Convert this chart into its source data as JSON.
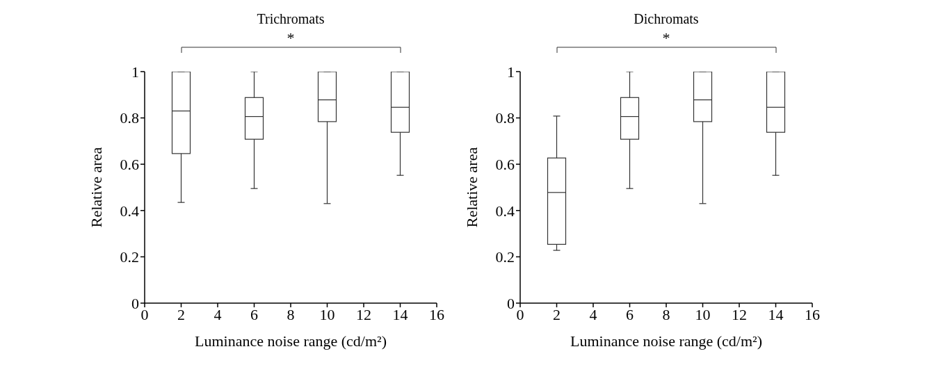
{
  "chart_data": [
    {
      "type": "box",
      "title": "Trichromats",
      "xlabel": "Luminance noise range (cd/m²)",
      "ylabel": "Relative area",
      "x": [
        2,
        6,
        10,
        14
      ],
      "color": "#333333",
      "boxes": [
        {
          "low": 0.435,
          "q1": 0.646,
          "median": 0.83,
          "q3": 1,
          "high": 1
        },
        {
          "low": 0.495,
          "q1": 0.708,
          "median": 0.806,
          "q3": 0.888,
          "high": 1
        },
        {
          "low": 0.43,
          "q1": 0.784,
          "median": 0.878,
          "q3": 1,
          "high": 1
        },
        {
          "low": 0.552,
          "q1": 0.738,
          "median": 0.846,
          "q3": 1,
          "high": 1
        }
      ],
      "xlim": [
        0,
        16
      ],
      "xticks": [
        0,
        2,
        4,
        6,
        8,
        10,
        12,
        14,
        16
      ],
      "ylim": [
        0,
        1
      ],
      "yticks": [
        0,
        0.2,
        0.4,
        0.6,
        0.8,
        1
      ],
      "grid": false,
      "annotations": [
        "*"
      ]
    },
    {
      "type": "box",
      "title": "Dichromats",
      "xlabel": "Luminance noise range (cd/m²)",
      "ylabel": "Relative area",
      "x": [
        2,
        6,
        10,
        14
      ],
      "color": "#333333",
      "boxes": [
        {
          "low": 0.228,
          "q1": 0.254,
          "median": 0.478,
          "q3": 0.627,
          "high": 0.808
        },
        {
          "low": 0.495,
          "q1": 0.708,
          "median": 0.806,
          "q3": 0.888,
          "high": 1
        },
        {
          "low": 0.43,
          "q1": 0.784,
          "median": 0.878,
          "q3": 1,
          "high": 1
        },
        {
          "low": 0.552,
          "q1": 0.738,
          "median": 0.846,
          "q3": 1,
          "high": 1
        }
      ],
      "xlim": [
        0,
        16
      ],
      "xticks": [
        0,
        2,
        4,
        6,
        8,
        10,
        12,
        14,
        16
      ],
      "ylim": [
        0,
        1
      ],
      "yticks": [
        0,
        0.2,
        0.4,
        0.6,
        0.8,
        1
      ],
      "grid": false,
      "annotations": [
        "*"
      ]
    }
  ]
}
